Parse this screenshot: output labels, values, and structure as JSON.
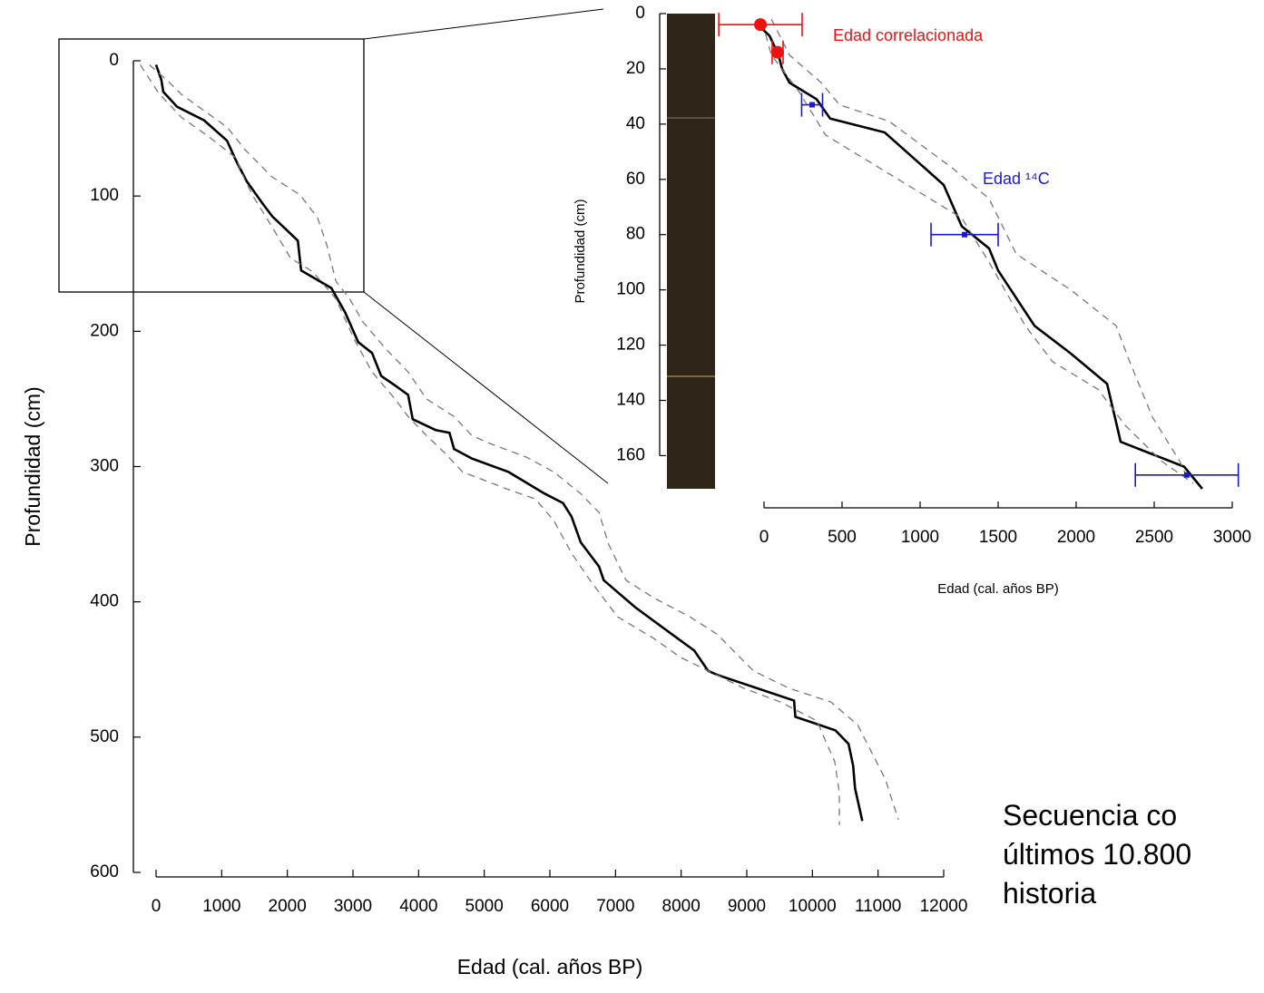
{
  "chart_data": [
    {
      "type": "line",
      "xlabel": "Edad (cal. años BP)",
      "ylabel": "Profundidad (cm)",
      "xlim": [
        0,
        12000
      ],
      "ylim": [
        0,
        600
      ],
      "y_inverted": true,
      "xticks": [
        0,
        1000,
        2000,
        3000,
        4000,
        5000,
        6000,
        7000,
        8000,
        9000,
        10000,
        11000,
        12000
      ],
      "yticks": [
        0,
        100,
        200,
        300,
        400,
        500,
        600
      ],
      "series": [
        {
          "color": "#000000",
          "style": "solid",
          "x": [
            0,
            80,
            110,
            320,
            730,
            1080,
            1220,
            1380,
            1630,
            1770,
            2160,
            2210,
            2670,
            2880,
            3080,
            3290,
            3430,
            3640,
            3840,
            3910,
            4260,
            4470,
            4540,
            4810,
            5370,
            5920,
            6200,
            6330,
            6470,
            6750,
            6820,
            7300,
            7860,
            8200,
            8410,
            8550,
            9720,
            9740,
            10350,
            10550,
            10620,
            10650,
            10760
          ],
          "values": [
            3,
            14,
            23,
            34,
            44,
            59,
            74,
            89,
            106,
            115,
            133,
            155,
            168,
            186,
            208,
            216,
            233,
            240,
            247,
            265,
            273,
            275,
            287,
            294,
            304,
            320,
            327,
            337,
            356,
            374,
            384,
            404,
            424,
            436,
            451,
            454,
            473,
            485,
            495,
            505,
            521,
            538,
            562
          ]
        },
        {
          "color": "#777777",
          "style": "dashed",
          "x": [
            -240,
            40,
            390,
            800,
            1220,
            1360,
            1490,
            1770,
            2050,
            2390,
            2740,
            3020,
            3290,
            3640,
            3840,
            4120,
            4400,
            4670,
            5370,
            5780,
            6060,
            6330,
            6610,
            7030,
            7580,
            7990,
            8410,
            8960,
            9510,
            10070,
            10210,
            10340,
            10410,
            10410
          ],
          "values": [
            3,
            24,
            42,
            56,
            72,
            89,
            101,
            123,
            146,
            156,
            176,
            206,
            230,
            250,
            263,
            277,
            290,
            304,
            317,
            324,
            340,
            364,
            384,
            411,
            427,
            441,
            451,
            464,
            474,
            488,
            504,
            518,
            541,
            565
          ]
        },
        {
          "color": "#777777",
          "style": "dashed",
          "x": [
            -100,
            180,
            390,
            1080,
            1360,
            1770,
            2190,
            2460,
            2600,
            2740,
            2950,
            3150,
            3500,
            3840,
            4120,
            4540,
            4810,
            5090,
            5640,
            6060,
            6470,
            6750,
            6890,
            7160,
            7580,
            8130,
            8550,
            9100,
            9650,
            10280,
            10690,
            10900,
            11110,
            11310
          ],
          "values": [
            3,
            15,
            25,
            49,
            66,
            86,
            99,
            116,
            136,
            163,
            176,
            193,
            213,
            230,
            250,
            263,
            277,
            283,
            293,
            304,
            320,
            334,
            357,
            384,
            397,
            411,
            424,
            451,
            464,
            474,
            491,
            511,
            531,
            561
          ]
        }
      ]
    },
    {
      "type": "line",
      "xlabel": "Edad (cal. años BP)",
      "ylabel": "Profundidad (cm)",
      "xlim": [
        0,
        3000
      ],
      "ylim": [
        0,
        172
      ],
      "y_inverted": true,
      "xticks": [
        0,
        500,
        1000,
        1500,
        2000,
        2500,
        3000
      ],
      "yticks": [
        0,
        20,
        40,
        60,
        80,
        100,
        120,
        140,
        160
      ],
      "series": [
        {
          "color": "#000000",
          "style": "solid",
          "x": [
            -40,
            35,
            93,
            116,
            163,
            337,
            424,
            773,
            1151,
            1267,
            1442,
            1500,
            1733,
            1965,
            2198,
            2285,
            2692,
            2808
          ],
          "values": [
            4,
            8,
            15,
            20,
            25,
            31,
            38,
            43,
            62,
            77,
            85,
            93,
            113,
            123,
            134,
            155,
            164,
            172
          ]
        },
        {
          "color": "#777777",
          "style": "dashed",
          "x": [
            47,
            163,
            366,
            483,
            802,
            1209,
            1442,
            1616,
            1965,
            2256,
            2343,
            2488,
            2663,
            2721
          ],
          "values": [
            2,
            15,
            25,
            33,
            39,
            56,
            67,
            87,
            100,
            113,
            126,
            146,
            162,
            169
          ]
        },
        {
          "color": "#777777",
          "style": "dashed",
          "x": [
            -12,
            47,
            221,
            395,
            773,
            1267,
            1442,
            1674,
            1849,
            2140,
            2314,
            2547,
            2750
          ],
          "values": [
            3,
            15,
            28,
            44,
            57,
            74,
            90,
            113,
            126,
            136,
            149,
            162,
            170
          ]
        },
        {
          "type": "errorbar",
          "name": "Edad correlacionada",
          "color": "#ee1111",
          "marker_size": 7,
          "x": [
            -23,
            87
          ],
          "xerr": [
            267,
            35
          ],
          "values": [
            4,
            14
          ]
        },
        {
          "type": "errorbar",
          "name": "Edad ¹⁴C",
          "color": "#1a1acc",
          "marker_size": 3,
          "x": [
            308,
            1285,
            2709
          ],
          "xerr": [
            67,
            215,
            330
          ],
          "values": [
            33,
            80,
            167
          ]
        }
      ]
    }
  ],
  "text_block": {
    "lines": [
      "Secuencia co",
      "últimos 10.800",
      "historia"
    ]
  }
}
